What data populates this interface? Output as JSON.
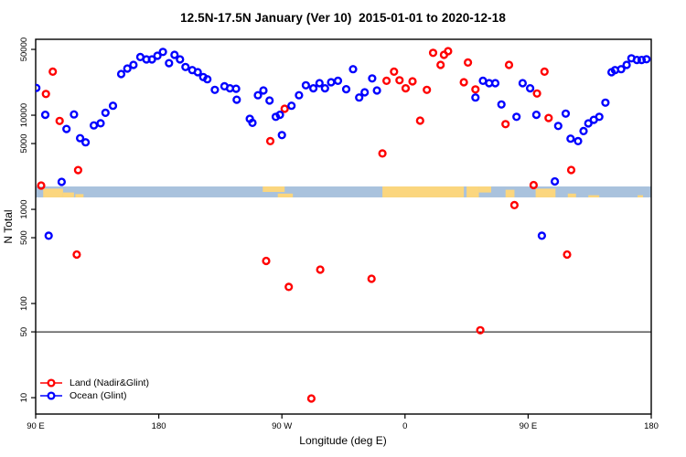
{
  "title": "12.5N-17.5N January (Ver 10)  2015-01-01 to 2020-12-18",
  "axes": {
    "x": {
      "label": "Longitude (deg E)",
      "lim": [
        -270,
        180
      ],
      "ticks": [
        {
          "lon": -270,
          "label": "90 E"
        },
        {
          "lon": -180,
          "label": "180"
        },
        {
          "lon": -90,
          "label": "90 W"
        },
        {
          "lon": 0,
          "label": "0"
        },
        {
          "lon": 90,
          "label": "90 E"
        },
        {
          "lon": 180,
          "label": "180"
        }
      ]
    },
    "y": {
      "label": "N Total",
      "scale": "log",
      "ticks": [
        50000,
        10000,
        5000,
        1000,
        500,
        100,
        50,
        10
      ],
      "render_lim": [
        6.7,
        64000
      ]
    }
  },
  "legend": {
    "items": [
      {
        "label": "Land (Nadir&Glint)",
        "color": "#ff0000"
      },
      {
        "label": "Ocean (Glint)",
        "color": "#0000ff"
      }
    ]
  },
  "chart_data": {
    "type": "scatter",
    "title": "12.5N-17.5N January (Ver 10)  2015-01-01 to 2020-12-18",
    "xlabel": "Longitude (deg E)",
    "ylabel": "N Total",
    "x_range": [
      -270,
      180
    ],
    "y_scale": "log",
    "y_ticks": [
      10,
      50,
      100,
      500,
      1000,
      5000,
      10000,
      50000
    ],
    "reference_line": {
      "value": 50,
      "color": "#000000"
    },
    "map_band": {
      "value_top": 1750,
      "value_bottom": 1340,
      "ocean_color": "#a9c2dd",
      "land_color": "#fbd67e",
      "land_patches": [
        {
          "from": -264.5,
          "to": -250,
          "mode": "bottom",
          "frac": 0.8
        },
        {
          "from": -250,
          "to": -242,
          "mode": "bottom",
          "frac": 0.45
        },
        {
          "from": -241,
          "to": -235,
          "mode": "bottom",
          "frac": 0.3
        },
        {
          "from": -104,
          "to": -88,
          "mode": "top",
          "frac": 0.5
        },
        {
          "from": -93,
          "to": -82,
          "mode": "bottom",
          "frac": 0.35
        },
        {
          "from": -16.5,
          "to": 43,
          "mode": "full",
          "frac": 1
        },
        {
          "from": 45,
          "to": 54,
          "mode": "full",
          "frac": 1
        },
        {
          "from": 54,
          "to": 63,
          "mode": "top",
          "frac": 0.55
        },
        {
          "from": 73.5,
          "to": 80,
          "mode": "bottom",
          "frac": 0.7
        },
        {
          "from": 95.5,
          "to": 110,
          "mode": "bottom",
          "frac": 0.8
        },
        {
          "from": 119,
          "to": 125,
          "mode": "bottom",
          "frac": 0.35
        },
        {
          "from": 134,
          "to": 142,
          "mode": "bottom",
          "frac": 0.2
        },
        {
          "from": 170,
          "to": 174,
          "mode": "bottom",
          "frac": 0.2
        }
      ]
    },
    "series": [
      {
        "name": "Land (Nadir&Glint)",
        "color": "#ff0000",
        "points": [
          [
            -266,
            1790
          ],
          [
            -262.5,
            16800
          ],
          [
            -257.5,
            29000
          ],
          [
            -252.5,
            8700
          ],
          [
            -240,
            331
          ],
          [
            -239,
            2610
          ],
          [
            -101.5,
            283
          ],
          [
            -98.5,
            5310
          ],
          [
            -88,
            11700
          ],
          [
            -85,
            150
          ],
          [
            -68.5,
            9.8
          ],
          [
            -62,
            229
          ],
          [
            -24.5,
            183
          ],
          [
            -16.5,
            3920
          ],
          [
            -13.5,
            23200
          ],
          [
            -8,
            29000
          ],
          [
            -4,
            23500
          ],
          [
            0.5,
            19300
          ],
          [
            5.5,
            22900
          ],
          [
            11,
            8750
          ],
          [
            16,
            18600
          ],
          [
            20.5,
            46000
          ],
          [
            26,
            34200
          ],
          [
            28.5,
            43800
          ],
          [
            31.5,
            47900
          ],
          [
            43,
            22400
          ],
          [
            46,
            36300
          ],
          [
            51.5,
            18800
          ],
          [
            55,
            52
          ],
          [
            73.5,
            8050
          ],
          [
            76,
            34200
          ],
          [
            80,
            1110
          ],
          [
            94,
            1810
          ],
          [
            96.5,
            17000
          ],
          [
            102,
            29000
          ],
          [
            105,
            9350
          ],
          [
            118.5,
            331
          ],
          [
            121.5,
            2620
          ]
        ]
      },
      {
        "name": "Ocean (Glint)",
        "color": "#0000ff",
        "points": [
          [
            -269.5,
            19500
          ],
          [
            -263,
            10100
          ],
          [
            -260.5,
            525
          ],
          [
            -251,
            1960
          ],
          [
            -247.5,
            7150
          ],
          [
            -242,
            10200
          ],
          [
            -237.5,
            5700
          ],
          [
            -233.5,
            5150
          ],
          [
            -227.5,
            7800
          ],
          [
            -222.5,
            8200
          ],
          [
            -219,
            10600
          ],
          [
            -213.5,
            12600
          ],
          [
            -207.5,
            27400
          ],
          [
            -203,
            31300
          ],
          [
            -198.5,
            34200
          ],
          [
            -193.5,
            41500
          ],
          [
            -189,
            39100
          ],
          [
            -185,
            39100
          ],
          [
            -181,
            42800
          ],
          [
            -177,
            47000
          ],
          [
            -172.5,
            35700
          ],
          [
            -168.5,
            43800
          ],
          [
            -164.5,
            39100
          ],
          [
            -160.5,
            32500
          ],
          [
            -155.5,
            30100
          ],
          [
            -151.5,
            28600
          ],
          [
            -147.5,
            25400
          ],
          [
            -144.5,
            24100
          ],
          [
            -139,
            18600
          ],
          [
            -132,
            20300
          ],
          [
            -128,
            19300
          ],
          [
            -123.5,
            19100
          ],
          [
            -123,
            14600
          ],
          [
            -113.5,
            9150
          ],
          [
            -111.5,
            8300
          ],
          [
            -107.5,
            16300
          ],
          [
            -103.5,
            18300
          ],
          [
            -99,
            14300
          ],
          [
            -94.5,
            9620
          ],
          [
            -91.5,
            10100
          ],
          [
            -90,
            6150
          ],
          [
            -83,
            12600
          ],
          [
            -77.5,
            16300
          ],
          [
            -72.5,
            20800
          ],
          [
            -67,
            19300
          ],
          [
            -62.5,
            21900
          ],
          [
            -58.5,
            19300
          ],
          [
            -54,
            22400
          ],
          [
            -49,
            23200
          ],
          [
            -43,
            18900
          ],
          [
            -38,
            30800
          ],
          [
            -33.5,
            15400
          ],
          [
            -29.5,
            17500
          ],
          [
            -24,
            24600
          ],
          [
            -20.5,
            18300
          ],
          [
            51.5,
            15400
          ],
          [
            57,
            23200
          ],
          [
            61.5,
            21900
          ],
          [
            66,
            21900
          ],
          [
            70.5,
            13000
          ],
          [
            81.5,
            9620
          ],
          [
            86,
            21900
          ],
          [
            91.5,
            19300
          ],
          [
            96,
            10100
          ],
          [
            100,
            525
          ],
          [
            109.5,
            1980
          ],
          [
            112,
            7690
          ],
          [
            117.5,
            10400
          ],
          [
            121,
            5630
          ],
          [
            126.5,
            5310
          ],
          [
            130.5,
            6790
          ],
          [
            134,
            8180
          ],
          [
            138,
            8940
          ],
          [
            142,
            9620
          ],
          [
            146.5,
            13600
          ],
          [
            151,
            28600
          ],
          [
            153.5,
            30100
          ],
          [
            158,
            30800
          ],
          [
            162,
            34200
          ],
          [
            165.5,
            40200
          ],
          [
            169.5,
            38600
          ],
          [
            173,
            38600
          ],
          [
            176.5,
            39300
          ]
        ]
      }
    ]
  }
}
